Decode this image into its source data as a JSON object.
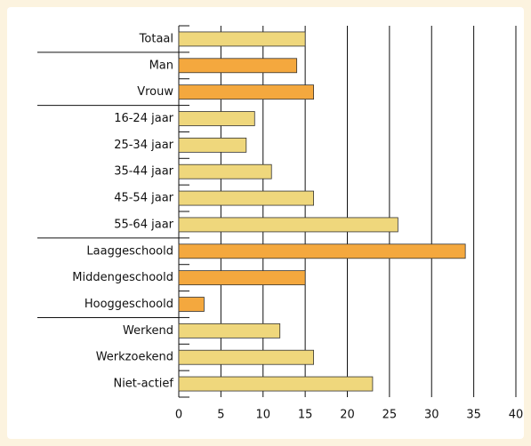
{
  "chart_data": {
    "type": "bar",
    "categories": [
      "Totaal",
      "Man",
      "Vrouw",
      "16-24 jaar",
      "25-34 jaar",
      "35-44 jaar",
      "45-54 jaar",
      "55-64 jaar",
      "Laaggeschoold",
      "Middengeschoold",
      "Hooggeschoold",
      "Werkend",
      "Werkzoekend",
      "Niet-actief"
    ],
    "values": [
      15,
      14,
      16,
      9,
      8,
      11,
      16,
      26,
      34,
      15,
      3,
      12,
      16,
      23
    ],
    "colors": [
      "#efd77c",
      "#f4a83e",
      "#f4a83e",
      "#efd77c",
      "#efd77c",
      "#efd77c",
      "#efd77c",
      "#efd77c",
      "#f4a83e",
      "#f4a83e",
      "#f4a83e",
      "#efd77c",
      "#efd77c",
      "#efd77c"
    ],
    "xlim": [
      0,
      40
    ],
    "xticks": [
      0,
      5,
      10,
      15,
      20,
      25,
      30,
      35,
      40
    ],
    "grid": true
  }
}
